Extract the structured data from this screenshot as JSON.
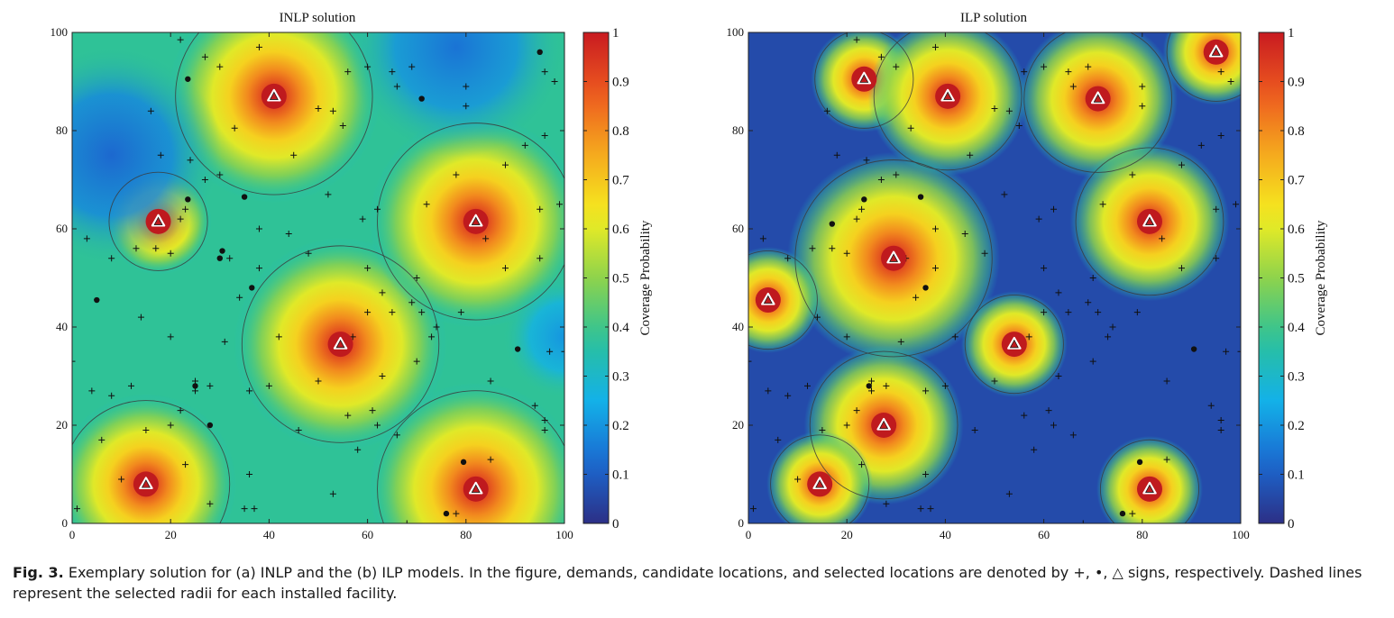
{
  "colors": {
    "colormap": [
      "#2c2f86",
      "#1b6ad2",
      "#13b1e8",
      "#2bc19a",
      "#8ed34c",
      "#f5ee1f",
      "#f5ab1e",
      "#ee5a1f",
      "#c81a20"
    ],
    "facility_fill": "#bf1a1e",
    "circle_stroke": "#3b3b3b",
    "marker": "#111111"
  },
  "chart_data": [
    {
      "type": "heatmap",
      "title": "INLP solution",
      "xlim": [
        0,
        100
      ],
      "ylim": [
        0,
        100
      ],
      "x_ticks": [
        "0",
        "20",
        "40",
        "60",
        "80",
        "100"
      ],
      "y_ticks": [
        "0",
        "20",
        "40",
        "60",
        "80",
        "100"
      ],
      "colorbar": {
        "label": "Coverage Probability",
        "range": [
          0,
          1
        ],
        "ticks": [
          "0",
          "0.1",
          "0.2",
          "0.3",
          "0.4",
          "0.5",
          "0.6",
          "0.7",
          "0.8",
          "0.9",
          "1"
        ]
      },
      "background_coverage": 0.38,
      "selected_facilities": [
        {
          "x": 15,
          "y": 8,
          "radius": 17
        },
        {
          "x": 17.5,
          "y": 61.5,
          "radius": 10
        },
        {
          "x": 41,
          "y": 87,
          "radius": 20
        },
        {
          "x": 54.5,
          "y": 36.5,
          "radius": 20
        },
        {
          "x": 82,
          "y": 61.5,
          "radius": 20
        },
        {
          "x": 82,
          "y": 7,
          "radius": 20
        }
      ],
      "low_coverage_zones": [
        {
          "x": 8,
          "y": 75,
          "spread": 16,
          "level": 0.12
        },
        {
          "x": 78,
          "y": 97,
          "spread": 16,
          "level": 0.14
        },
        {
          "x": 100,
          "y": 38,
          "spread": 9,
          "level": 0.2
        }
      ],
      "demand_points": [
        [
          22,
          98.5
        ],
        [
          27,
          95
        ],
        [
          38,
          97
        ],
        [
          30,
          93
        ],
        [
          16,
          84
        ],
        [
          33,
          80.5
        ],
        [
          24,
          74
        ],
        [
          18,
          75
        ],
        [
          30,
          71
        ],
        [
          27,
          70
        ],
        [
          45,
          75
        ],
        [
          60,
          93
        ],
        [
          65,
          92
        ],
        [
          69,
          93
        ],
        [
          66,
          89
        ],
        [
          56,
          92
        ],
        [
          55,
          81
        ],
        [
          50,
          84.5
        ],
        [
          53,
          84
        ],
        [
          80,
          89
        ],
        [
          80,
          85
        ],
        [
          92,
          77
        ],
        [
          96,
          79
        ],
        [
          98,
          90
        ],
        [
          96,
          92
        ],
        [
          95,
          64
        ],
        [
          99,
          65
        ],
        [
          88,
          73
        ],
        [
          78,
          71
        ],
        [
          72,
          65
        ],
        [
          62,
          64
        ],
        [
          59,
          62
        ],
        [
          52,
          67
        ],
        [
          44,
          59
        ],
        [
          38,
          60
        ],
        [
          38,
          52
        ],
        [
          32,
          54
        ],
        [
          34,
          46
        ],
        [
          23,
          64
        ],
        [
          22,
          62
        ],
        [
          20,
          55
        ],
        [
          17,
          56
        ],
        [
          13,
          56
        ],
        [
          8,
          54
        ],
        [
          3,
          58
        ],
        [
          48,
          55
        ],
        [
          60,
          52
        ],
        [
          70,
          50
        ],
        [
          84,
          58
        ],
        [
          88,
          52
        ],
        [
          95,
          54
        ],
        [
          69,
          45
        ],
        [
          65,
          43
        ],
        [
          60,
          43
        ],
        [
          57,
          38
        ],
        [
          63,
          47
        ],
        [
          74,
          40
        ],
        [
          73,
          38
        ],
        [
          79,
          43
        ],
        [
          71,
          43
        ],
        [
          70,
          33
        ],
        [
          63,
          30
        ],
        [
          56,
          22
        ],
        [
          61,
          23
        ],
        [
          62,
          20
        ],
        [
          58,
          15
        ],
        [
          66,
          18
        ],
        [
          42,
          38
        ],
        [
          40,
          28
        ],
        [
          31,
          37
        ],
        [
          46,
          19
        ],
        [
          50,
          29
        ],
        [
          36,
          27
        ],
        [
          14,
          42
        ],
        [
          20,
          38
        ],
        [
          12,
          28
        ],
        [
          4,
          27
        ],
        [
          8,
          26
        ],
        [
          20,
          20
        ],
        [
          22,
          23
        ],
        [
          23,
          12
        ],
        [
          25,
          29
        ],
        [
          25,
          27
        ],
        [
          28,
          28
        ],
        [
          6,
          17
        ],
        [
          10,
          9
        ],
        [
          0,
          33
        ],
        [
          1,
          3
        ],
        [
          15,
          19
        ],
        [
          36,
          10
        ],
        [
          35,
          3
        ],
        [
          37,
          3
        ],
        [
          28,
          4
        ],
        [
          53,
          6
        ],
        [
          85,
          13
        ],
        [
          78,
          2
        ],
        [
          85,
          29
        ],
        [
          94,
          24
        ],
        [
          96,
          21
        ],
        [
          96,
          19
        ],
        [
          97,
          35
        ],
        [
          100,
          35
        ],
        [
          68,
          0
        ]
      ],
      "candidate_points": [
        [
          23.5,
          90.5
        ],
        [
          71,
          86.5
        ],
        [
          95,
          96
        ],
        [
          23.5,
          66
        ],
        [
          35,
          66.5
        ],
        [
          30.5,
          55.5
        ],
        [
          30,
          54
        ],
        [
          36.5,
          48
        ],
        [
          5,
          45.5
        ],
        [
          90.5,
          35.5
        ],
        [
          25,
          28
        ],
        [
          28,
          20
        ],
        [
          79.5,
          12.5
        ],
        [
          76,
          2
        ]
      ]
    },
    {
      "type": "heatmap",
      "title": "ILP solution",
      "xlim": [
        0,
        100
      ],
      "ylim": [
        0,
        100
      ],
      "x_ticks": [
        "0",
        "20",
        "40",
        "60",
        "80",
        "100"
      ],
      "y_ticks": [
        "0",
        "20",
        "40",
        "60",
        "80",
        "100"
      ],
      "colorbar": {
        "label": "Coverage Probability",
        "range": [
          0,
          1
        ],
        "ticks": [
          "0",
          "0.1",
          "0.2",
          "0.3",
          "0.4",
          "0.5",
          "0.6",
          "0.7",
          "0.8",
          "0.9",
          "1"
        ]
      },
      "background_coverage": 0.06,
      "selected_facilities": [
        {
          "x": 23.5,
          "y": 90.5,
          "radius": 10
        },
        {
          "x": 40.5,
          "y": 87,
          "radius": 15
        },
        {
          "x": 71,
          "y": 86.5,
          "radius": 15
        },
        {
          "x": 95,
          "y": 96,
          "radius": 10
        },
        {
          "x": 81.5,
          "y": 61.5,
          "radius": 15
        },
        {
          "x": 29.5,
          "y": 54,
          "radius": 20
        },
        {
          "x": 4,
          "y": 45.5,
          "radius": 10
        },
        {
          "x": 54,
          "y": 36.5,
          "radius": 10
        },
        {
          "x": 27.5,
          "y": 20,
          "radius": 15
        },
        {
          "x": 14.5,
          "y": 8,
          "radius": 10
        },
        {
          "x": 81.5,
          "y": 7,
          "radius": 10
        }
      ],
      "low_coverage_zones": [],
      "demand_points": [
        [
          22,
          98.5
        ],
        [
          27,
          95
        ],
        [
          38,
          97
        ],
        [
          30,
          93
        ],
        [
          16,
          84
        ],
        [
          33,
          80.5
        ],
        [
          24,
          74
        ],
        [
          18,
          75
        ],
        [
          30,
          71
        ],
        [
          27,
          70
        ],
        [
          45,
          75
        ],
        [
          60,
          93
        ],
        [
          65,
          92
        ],
        [
          69,
          93
        ],
        [
          66,
          89
        ],
        [
          56,
          92
        ],
        [
          55,
          81
        ],
        [
          50,
          84.5
        ],
        [
          53,
          84
        ],
        [
          80,
          89
        ],
        [
          80,
          85
        ],
        [
          92,
          77
        ],
        [
          96,
          79
        ],
        [
          98,
          90
        ],
        [
          96,
          92
        ],
        [
          95,
          64
        ],
        [
          99,
          65
        ],
        [
          88,
          73
        ],
        [
          78,
          71
        ],
        [
          72,
          65
        ],
        [
          62,
          64
        ],
        [
          59,
          62
        ],
        [
          52,
          67
        ],
        [
          44,
          59
        ],
        [
          38,
          60
        ],
        [
          38,
          52
        ],
        [
          32,
          54
        ],
        [
          34,
          46
        ],
        [
          23,
          64
        ],
        [
          22,
          62
        ],
        [
          20,
          55
        ],
        [
          17,
          56
        ],
        [
          13,
          56
        ],
        [
          8,
          54
        ],
        [
          3,
          58
        ],
        [
          48,
          55
        ],
        [
          60,
          52
        ],
        [
          70,
          50
        ],
        [
          84,
          58
        ],
        [
          88,
          52
        ],
        [
          95,
          54
        ],
        [
          69,
          45
        ],
        [
          65,
          43
        ],
        [
          60,
          43
        ],
        [
          57,
          38
        ],
        [
          63,
          47
        ],
        [
          74,
          40
        ],
        [
          73,
          38
        ],
        [
          79,
          43
        ],
        [
          71,
          43
        ],
        [
          70,
          33
        ],
        [
          63,
          30
        ],
        [
          56,
          22
        ],
        [
          61,
          23
        ],
        [
          62,
          20
        ],
        [
          58,
          15
        ],
        [
          66,
          18
        ],
        [
          42,
          38
        ],
        [
          40,
          28
        ],
        [
          31,
          37
        ],
        [
          46,
          19
        ],
        [
          50,
          29
        ],
        [
          36,
          27
        ],
        [
          14,
          42
        ],
        [
          20,
          38
        ],
        [
          12,
          28
        ],
        [
          4,
          27
        ],
        [
          8,
          26
        ],
        [
          20,
          20
        ],
        [
          22,
          23
        ],
        [
          23,
          12
        ],
        [
          25,
          29
        ],
        [
          25,
          27
        ],
        [
          28,
          28
        ],
        [
          6,
          17
        ],
        [
          10,
          9
        ],
        [
          0,
          33
        ],
        [
          1,
          3
        ],
        [
          15,
          19
        ],
        [
          36,
          10
        ],
        [
          35,
          3
        ],
        [
          37,
          3
        ],
        [
          28,
          4
        ],
        [
          53,
          6
        ],
        [
          85,
          13
        ],
        [
          78,
          2
        ],
        [
          85,
          29
        ],
        [
          94,
          24
        ],
        [
          96,
          21
        ],
        [
          96,
          19
        ],
        [
          97,
          35
        ],
        [
          100,
          35
        ],
        [
          68,
          0
        ]
      ],
      "candidate_points": [
        [
          17,
          61
        ],
        [
          23.5,
          66
        ],
        [
          35,
          66.5
        ],
        [
          30,
          55.5
        ],
        [
          36,
          48
        ],
        [
          90.5,
          35.5
        ],
        [
          24.5,
          28
        ],
        [
          79.5,
          12.5
        ],
        [
          76,
          2
        ]
      ]
    }
  ],
  "caption": {
    "label": "Fig. 3.",
    "text": "Exemplary solution for (a) INLP and the (b) ILP models. In the figure, demands, candidate locations, and selected locations are denoted by +, •, △ signs, respectively. Dashed lines represent the selected radii for each installed facility."
  }
}
